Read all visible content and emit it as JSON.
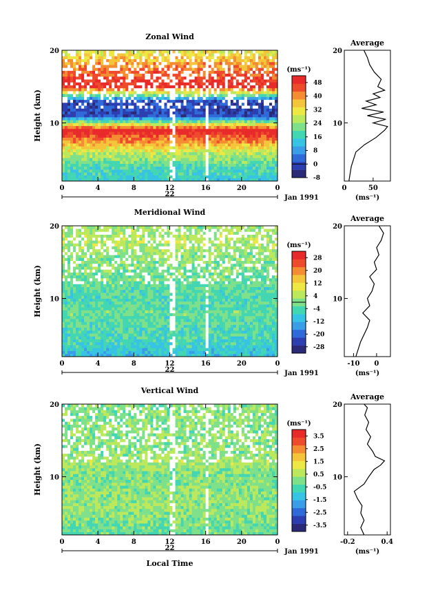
{
  "figure": {
    "xlabel": "Local Time",
    "date_label": "Jan 1991",
    "unit_label": "(ms⁻¹)"
  },
  "chart_data": [
    {
      "type": "heatmap",
      "title": "Zonal Wind",
      "ylabel": "Height (km)",
      "y_ticks": [
        "20",
        "10"
      ],
      "ylim": [
        2,
        20
      ],
      "x_ticks": [
        "0",
        "4",
        "8",
        "12",
        "16",
        "20",
        "0"
      ],
      "xlim": [
        0,
        24
      ],
      "day_label": "22",
      "colorbar": {
        "unit": "(ms⁻¹)",
        "ticks": [
          "48",
          "40",
          "32",
          "24",
          "16",
          "8",
          "0",
          "-8"
        ],
        "range": [
          -8,
          52
        ],
        "zero_line": 0
      },
      "field_profile": [
        [
          2,
          14
        ],
        [
          4,
          18
        ],
        [
          6,
          28
        ],
        [
          8,
          44
        ],
        [
          9,
          52
        ],
        [
          11,
          0
        ],
        [
          13,
          0
        ],
        [
          15,
          50
        ],
        [
          18,
          40
        ],
        [
          20,
          30
        ]
      ],
      "profile": {
        "title": "Average",
        "x_ticks": [
          "0",
          "50"
        ],
        "x_tick_values": [
          0,
          50
        ],
        "xlim": [
          0,
          80
        ],
        "y_ticks": [
          "20",
          "10"
        ],
        "points": [
          [
            8,
            2
          ],
          [
            12,
            4
          ],
          [
            20,
            6
          ],
          [
            35,
            7
          ],
          [
            55,
            8
          ],
          [
            70,
            9
          ],
          [
            75,
            9.5
          ],
          [
            50,
            10
          ],
          [
            72,
            10.5
          ],
          [
            40,
            11
          ],
          [
            68,
            11.5
          ],
          [
            30,
            12
          ],
          [
            55,
            12.5
          ],
          [
            38,
            13
          ],
          [
            62,
            13.5
          ],
          [
            50,
            14
          ],
          [
            70,
            14.5
          ],
          [
            58,
            15
          ],
          [
            64,
            16
          ],
          [
            52,
            17
          ],
          [
            44,
            18
          ],
          [
            40,
            19
          ],
          [
            34,
            20
          ]
        ]
      }
    },
    {
      "type": "heatmap",
      "title": "Meridional Wind",
      "ylabel": "Height (km)",
      "y_ticks": [
        "20",
        "10"
      ],
      "ylim": [
        2,
        20
      ],
      "x_ticks": [
        "0",
        "4",
        "8",
        "12",
        "16",
        "20",
        "0"
      ],
      "xlim": [
        0,
        24
      ],
      "day_label": "22",
      "colorbar": {
        "unit": "(ms⁻¹)",
        "ticks": [
          "28",
          "20",
          "12",
          "4",
          "-4",
          "-12",
          "-20",
          "-28"
        ],
        "range": [
          -32,
          32
        ],
        "zero_line": 0
      },
      "field_profile": [
        [
          2,
          -10
        ],
        [
          4,
          -6
        ],
        [
          6,
          -4
        ],
        [
          8,
          -2
        ],
        [
          10,
          -4
        ],
        [
          12,
          -2
        ],
        [
          14,
          0
        ],
        [
          16,
          2
        ],
        [
          18,
          4
        ],
        [
          20,
          2
        ]
      ],
      "profile": {
        "title": "Average",
        "x_ticks": [
          "-10",
          "0"
        ],
        "x_tick_values": [
          -10,
          0
        ],
        "xlim": [
          -14,
          6
        ],
        "y_ticks": [
          "20",
          "10"
        ],
        "points": [
          [
            -9,
            2
          ],
          [
            -7,
            4
          ],
          [
            -4,
            6
          ],
          [
            -3,
            7
          ],
          [
            -6,
            8
          ],
          [
            -3,
            9
          ],
          [
            -4,
            10
          ],
          [
            -2,
            11
          ],
          [
            -1,
            12
          ],
          [
            -3,
            13
          ],
          [
            0,
            14
          ],
          [
            -1,
            15
          ],
          [
            1,
            16
          ],
          [
            0,
            17
          ],
          [
            2,
            18
          ],
          [
            3,
            19
          ],
          [
            1,
            20
          ]
        ]
      }
    },
    {
      "type": "heatmap",
      "title": "Vertical Wind",
      "ylabel": "Height (km)",
      "y_ticks": [
        "20",
        "10"
      ],
      "ylim": [
        2,
        20
      ],
      "x_ticks": [
        "0",
        "4",
        "8",
        "12",
        "16",
        "20",
        "0"
      ],
      "xlim": [
        0,
        24
      ],
      "day_label": "22",
      "colorbar": {
        "unit": "(ms⁻¹)",
        "ticks": [
          "3.5",
          "2.5",
          "1.5",
          "0.5",
          "-0.5",
          "-1.5",
          "-2.5",
          "-3.5"
        ],
        "range": [
          -4,
          4
        ],
        "zero_line": null
      },
      "field_profile": [
        [
          2,
          -0.3
        ],
        [
          6,
          0.3
        ],
        [
          10,
          0
        ],
        [
          12,
          0.4
        ],
        [
          14,
          0.1
        ],
        [
          16,
          0.2
        ],
        [
          20,
          0.1
        ]
      ],
      "profile": {
        "title": "Average",
        "x_ticks": [
          "-0.2",
          "0.4"
        ],
        "x_tick_values": [
          -0.2,
          0.4
        ],
        "xlim": [
          -0.25,
          0.45
        ],
        "y_ticks": [
          "20",
          "10"
        ],
        "points": [
          [
            0.05,
            2
          ],
          [
            0.0,
            3
          ],
          [
            0.05,
            4
          ],
          [
            0.0,
            5
          ],
          [
            0.02,
            6
          ],
          [
            -0.05,
            7
          ],
          [
            -0.1,
            8
          ],
          [
            0.05,
            9
          ],
          [
            0.12,
            10
          ],
          [
            0.2,
            11
          ],
          [
            0.3,
            11.6
          ],
          [
            0.36,
            12.2
          ],
          [
            0.22,
            12.8
          ],
          [
            0.18,
            13.5
          ],
          [
            0.1,
            14.5
          ],
          [
            0.15,
            15.5
          ],
          [
            0.08,
            16.5
          ],
          [
            0.12,
            17.5
          ],
          [
            0.06,
            18.5
          ],
          [
            0.1,
            19.5
          ],
          [
            0.05,
            20
          ]
        ]
      }
    }
  ]
}
